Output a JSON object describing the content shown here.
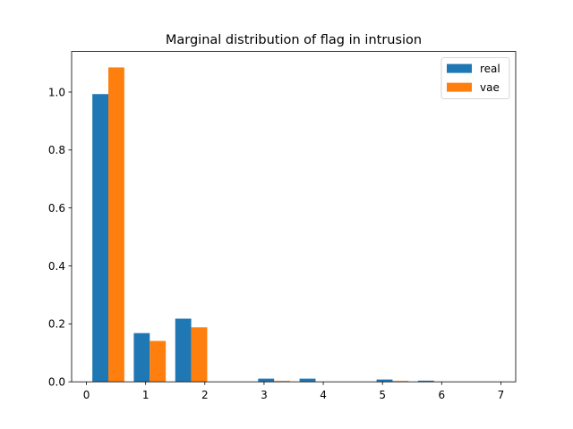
{
  "chart_data": {
    "type": "bar",
    "title": "Marginal distribution of flag in intrusion",
    "xlabel": "",
    "ylabel": "",
    "xlim": [
      -0.25,
      7.25
    ],
    "ylim": [
      0,
      1.14
    ],
    "xticks": [
      0,
      1,
      2,
      3,
      4,
      5,
      6,
      7
    ],
    "xtick_labels": [
      "0",
      "1",
      "2",
      "3",
      "4",
      "5",
      "6",
      "7"
    ],
    "yticks": [
      0.0,
      0.2,
      0.4,
      0.6,
      0.8,
      1.0
    ],
    "ytick_labels": [
      "0.0",
      "0.2",
      "0.4",
      "0.6",
      "0.8",
      "1.0"
    ],
    "bin_width": 0.27,
    "bin_starts": [
      0.1,
      0.8,
      1.5,
      2.9,
      3.6,
      4.9,
      5.6
    ],
    "grid": false,
    "legend_position": "top-right",
    "series": [
      {
        "name": "real",
        "color": "#1f77b4",
        "values": [
          0.993,
          0.168,
          0.218,
          0.011,
          0.011,
          0.008,
          0.004
        ]
      },
      {
        "name": "vae",
        "color": "#ff7f0e",
        "values": [
          1.085,
          0.141,
          0.188,
          0.003,
          0.0,
          0.003,
          0.0
        ]
      }
    ]
  }
}
